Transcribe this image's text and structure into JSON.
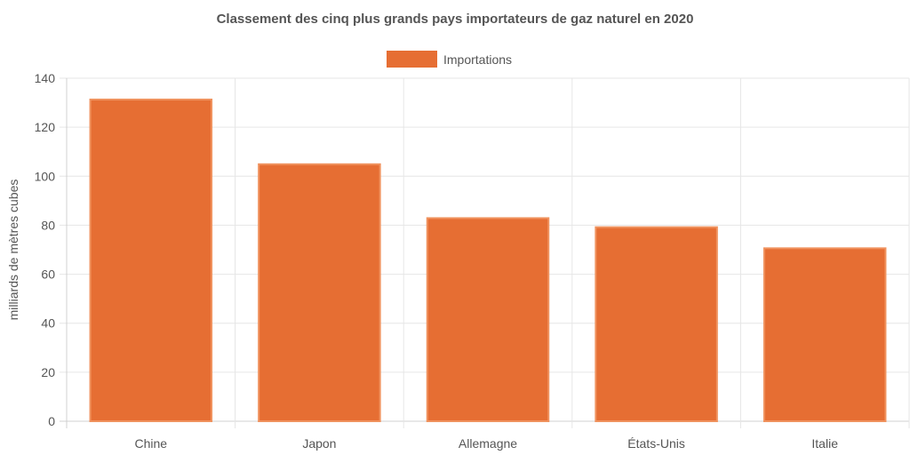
{
  "chart_data": {
    "type": "bar",
    "title": "Classement des cinq plus grands pays importateurs de gaz naturel en 2020",
    "xlabel": "",
    "ylabel": "milliards de mètres cubes",
    "categories": [
      "Chine",
      "Japon",
      "Allemagne",
      "États-Unis",
      "Italie"
    ],
    "series": [
      {
        "name": "Importations",
        "values": [
          131.3,
          104.9,
          82.9,
          79.2,
          70.6
        ],
        "color": "#e66e33"
      }
    ],
    "ylim": [
      0,
      140
    ],
    "yticks": [
      "0",
      "20",
      "40",
      "60",
      "80",
      "100",
      "120",
      "140"
    ],
    "grid": true,
    "legend_position": "top-center"
  }
}
